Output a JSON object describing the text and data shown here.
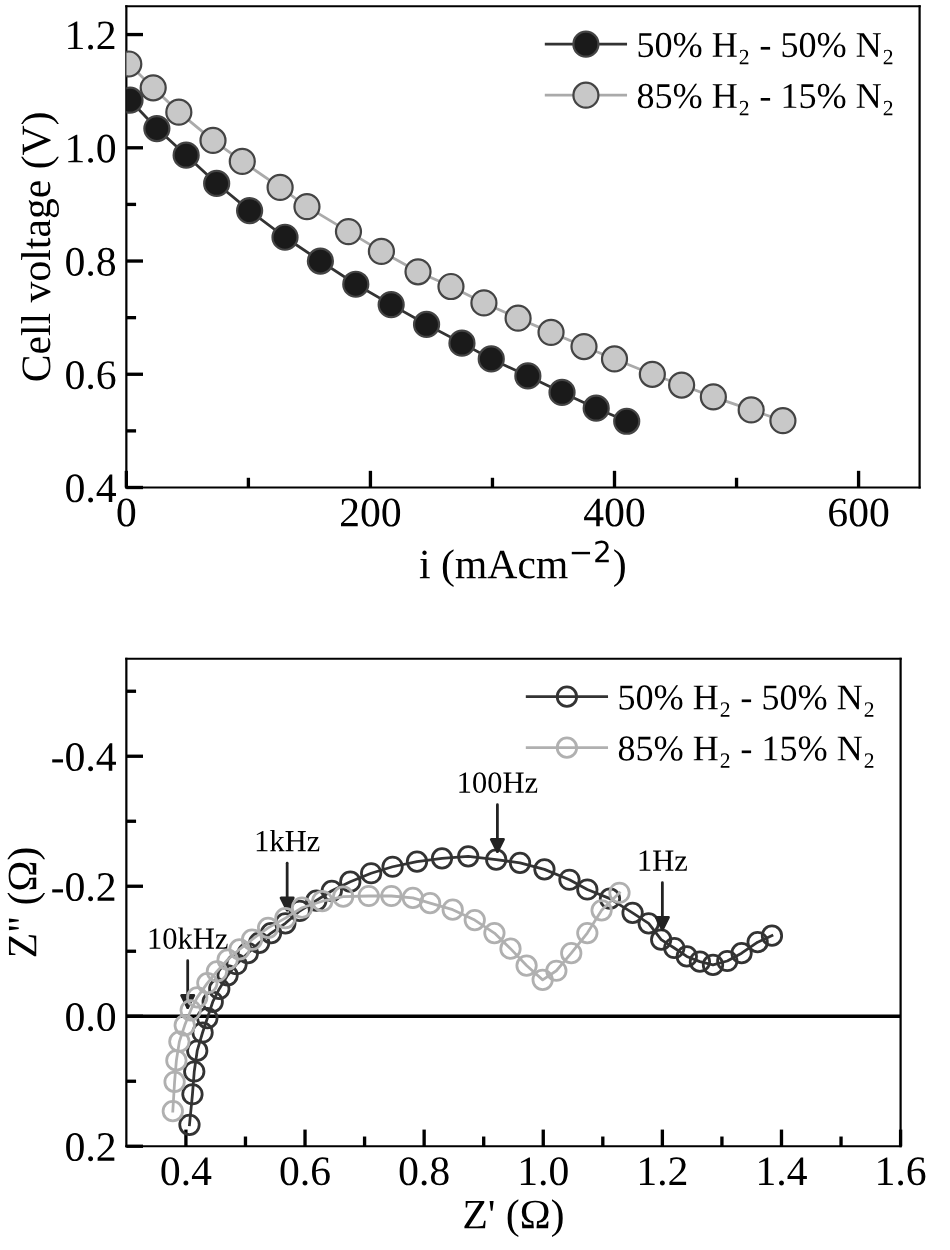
{
  "chart_data": [
    {
      "type": "line",
      "xlabel": "i (mAcm$^{−2}$)",
      "ylabel": "Cell voltage (V)",
      "xlim": [
        0,
        650
      ],
      "ylim": [
        0.4,
        1.25
      ],
      "xticks": [
        0,
        {
          "value": 100,
          "label": null
        },
        200,
        {
          "value": 300,
          "label": null
        },
        400,
        {
          "value": 500,
          "label": null
        },
        600
      ],
      "yticks": [
        0.4,
        {
          "value": 0.5,
          "label": null
        },
        0.6,
        {
          "value": 0.7,
          "label": null
        },
        0.8,
        {
          "value": 0.9,
          "label": null
        },
        {
          "value": 1.0,
          "label": "1.0"
        },
        {
          "value": 1.1,
          "label": null
        },
        1.2
      ],
      "marker": "circle",
      "legend": "top right",
      "grid": false,
      "series": [
        {
          "name": "50% H₂ - 50% N₂",
          "color": "#1a1a1a",
          "x": [
            3,
            25,
            49,
            74,
            101,
            130,
            159,
            188,
            217,
            246,
            275,
            299,
            329,
            357,
            385,
            410
          ],
          "values": [
            1.084,
            1.034,
            0.987,
            0.937,
            0.889,
            0.842,
            0.8,
            0.759,
            0.723,
            0.688,
            0.655,
            0.627,
            0.597,
            0.568,
            0.54,
            0.517
          ]
        },
        {
          "name": "85% H₂ - 15% N₂",
          "color": "#c8c8c8",
          "x": [
            2,
            22,
            43,
            71,
            95,
            126,
            148,
            182,
            209,
            239,
            266,
            293,
            321,
            348,
            375,
            400,
            431,
            455,
            481,
            512,
            538
          ],
          "values": [
            1.148,
            1.106,
            1.063,
            1.013,
            0.976,
            0.93,
            0.896,
            0.852,
            0.817,
            0.781,
            0.755,
            0.726,
            0.699,
            0.674,
            0.649,
            0.627,
            0.6,
            0.581,
            0.56,
            0.537,
            0.518
          ]
        }
      ]
    },
    {
      "type": "line",
      "xlabel": "Z' (Ω)",
      "ylabel": "Z\" (Ω)",
      "xlim": [
        0.3,
        1.6
      ],
      "ylim": [
        0.2,
        -0.55
      ],
      "xticks": [
        0.4,
        {
          "value": 0.5,
          "label": null
        },
        0.6,
        {
          "value": 0.7,
          "label": null
        },
        0.8,
        {
          "value": 0.9,
          "label": null
        },
        {
          "value": 1.0,
          "label": "1.0"
        },
        {
          "value": 1.1,
          "label": null
        },
        1.2,
        {
          "value": 1.3,
          "label": null
        },
        1.4,
        {
          "value": 1.5,
          "label": null
        },
        1.6
      ],
      "yticks": [
        0.2,
        {
          "value": 0.1,
          "label": null
        },
        {
          "value": 0.0,
          "label": "0.0"
        },
        {
          "value": -0.1,
          "label": null
        },
        -0.2,
        {
          "value": -0.3,
          "label": null
        },
        -0.4,
        {
          "value": -0.5,
          "label": null
        }
      ],
      "marker": "circle",
      "legend": "top right",
      "grid": false,
      "ref_lines": [
        {
          "axis": "y",
          "value": 0.0,
          "label": null,
          "color": "#000000"
        }
      ],
      "annotations": [
        {
          "text": "10kHz",
          "x": 0.403,
          "y": 0.0
        },
        {
          "text": "1kHz",
          "x": 0.57,
          "y": -0.15
        },
        {
          "text": "100Hz",
          "x": 0.923,
          "y": -0.24
        },
        {
          "text": "1Hz",
          "x": 1.2,
          "y": -0.12
        }
      ],
      "series": [
        {
          "name": "50% H₂ - 50% N₂",
          "color": "#333333",
          "x": [
            0.406,
            0.411,
            0.414,
            0.419,
            0.428,
            0.436,
            0.445,
            0.456,
            0.47,
            0.485,
            0.504,
            0.523,
            0.543,
            0.567,
            0.591,
            0.619,
            0.645,
            0.676,
            0.711,
            0.747,
            0.788,
            0.83,
            0.874,
            0.921,
            0.961,
            1.002,
            1.044,
            1.074,
            1.112,
            1.15,
            1.177,
            1.198,
            1.22,
            1.241,
            1.263,
            1.285,
            1.309,
            1.333,
            1.36,
            1.384
          ],
          "values": [
            0.167,
            0.12,
            0.085,
            0.053,
            0.025,
            0.003,
            -0.022,
            -0.042,
            -0.063,
            -0.08,
            -0.097,
            -0.113,
            -0.128,
            -0.143,
            -0.162,
            -0.178,
            -0.193,
            -0.207,
            -0.22,
            -0.23,
            -0.238,
            -0.243,
            -0.246,
            -0.241,
            -0.236,
            -0.226,
            -0.21,
            -0.195,
            -0.181,
            -0.159,
            -0.143,
            -0.118,
            -0.105,
            -0.092,
            -0.084,
            -0.079,
            -0.085,
            -0.097,
            -0.114,
            -0.124
          ]
        },
        {
          "name": "85% H₂ - 15% N₂",
          "color": "#b0b0b0",
          "x": [
            0.378,
            0.381,
            0.384,
            0.389,
            0.398,
            0.408,
            0.419,
            0.436,
            0.452,
            0.47,
            0.49,
            0.511,
            0.538,
            0.567,
            0.595,
            0.629,
            0.664,
            0.707,
            0.745,
            0.781,
            0.81,
            0.848,
            0.885,
            0.918,
            0.945,
            0.972,
            0.999,
            1.022,
            1.047,
            1.074,
            1.098,
            1.128
          ],
          "values": [
            0.146,
            0.101,
            0.068,
            0.039,
            0.014,
            -0.009,
            -0.029,
            -0.051,
            -0.069,
            -0.087,
            -0.103,
            -0.118,
            -0.136,
            -0.151,
            -0.167,
            -0.177,
            -0.184,
            -0.185,
            -0.185,
            -0.182,
            -0.174,
            -0.164,
            -0.148,
            -0.128,
            -0.104,
            -0.078,
            -0.056,
            -0.07,
            -0.097,
            -0.128,
            -0.163,
            -0.19
          ]
        }
      ]
    }
  ]
}
